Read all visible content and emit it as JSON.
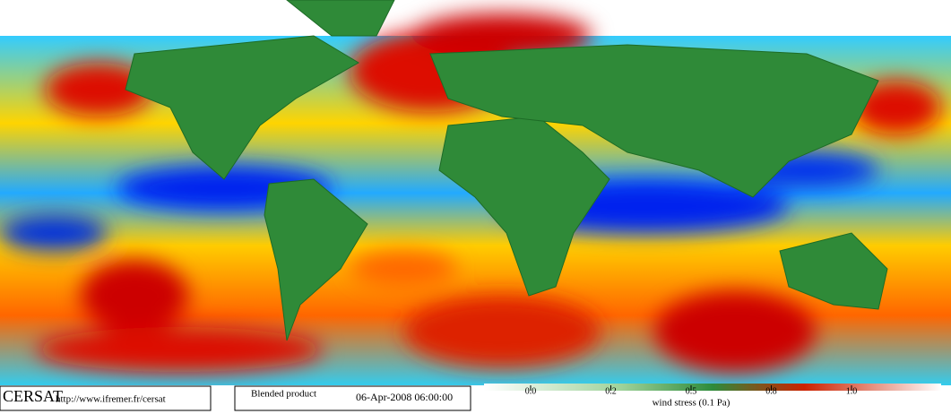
{
  "footer": {
    "logo": "CERSAT",
    "url": "http://www.ifremer.fr/cersat",
    "product": "Blended product",
    "date": "06-Apr-2008 06:00:00"
  },
  "colorbar": {
    "label": "wind stress (0.1 Pa)",
    "ticks": [
      {
        "value": 0,
        "label": "0.0"
      },
      0.2,
      0.5,
      0.8,
      {
        "value": 1,
        "label": "1.0"
      }
    ]
  }
}
